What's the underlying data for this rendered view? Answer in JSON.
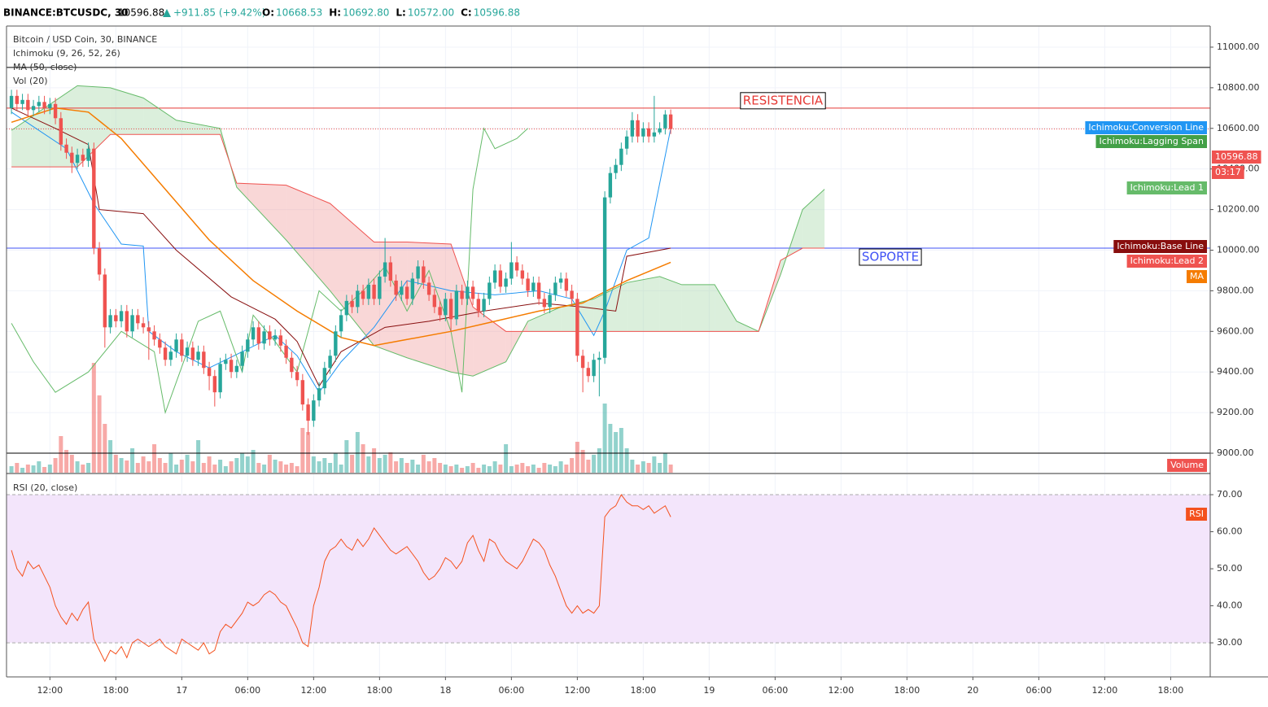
{
  "header": {
    "symbol": "BINANCE:BTCUSDC, 30",
    "last": "10596.88",
    "change": "+911.85 (+9.42%)",
    "ohlc": [
      {
        "label": "O:",
        "value": "10668.53"
      },
      {
        "label": "H:",
        "value": "10692.80"
      },
      {
        "label": "L:",
        "value": "10572.00"
      },
      {
        "label": "C:",
        "value": "10596.88"
      }
    ]
  },
  "chart_data": {
    "type": "candlestick",
    "legend": [
      "Bitcoin / USD Coin, 30, BINANCE",
      "Ichimoku (9, 26, 52, 26)",
      "MA (50, close)",
      "Vol (20)"
    ],
    "last_price": {
      "value": 10596.88,
      "label": "10596.88"
    },
    "countdown": "03:17",
    "xlim": [
      -0.9,
      218.2
    ],
    "ylim": [
      8904,
      11104
    ],
    "xticks": [
      {
        "value": 7,
        "label": "12:00"
      },
      {
        "value": 19,
        "label": "18:00"
      },
      {
        "value": 31,
        "label": "17"
      },
      {
        "value": 43,
        "label": "06:00"
      },
      {
        "value": 55,
        "label": "12:00"
      },
      {
        "value": 67,
        "label": "18:00"
      },
      {
        "value": 79,
        "label": "18"
      },
      {
        "value": 91,
        "label": "06:00"
      },
      {
        "value": 103,
        "label": "12:00"
      },
      {
        "value": 115,
        "label": "18:00"
      },
      {
        "value": 127,
        "label": "19"
      },
      {
        "value": 139,
        "label": "06:00"
      },
      {
        "value": 151,
        "label": "12:00"
      },
      {
        "value": 163,
        "label": "18:00"
      },
      {
        "value": 175,
        "label": "20"
      },
      {
        "value": 187,
        "label": "06:00"
      },
      {
        "value": 199,
        "label": "12:00"
      },
      {
        "value": 211,
        "label": "18:00"
      }
    ],
    "yticks": [
      {
        "value": 9000,
        "label": "9000.00"
      },
      {
        "value": 9200,
        "label": "9200.00"
      },
      {
        "value": 9400,
        "label": "9400.00"
      },
      {
        "value": 9600,
        "label": "9600.00"
      },
      {
        "value": 9800,
        "label": "9800.00"
      },
      {
        "value": 10000,
        "label": "10000.00"
      },
      {
        "value": 10200,
        "label": "10200.00"
      },
      {
        "value": 10400,
        "label": "10400.00"
      },
      {
        "value": 10600,
        "label": "10600.00"
      },
      {
        "value": 10800,
        "label": "10800.00"
      },
      {
        "value": 11000,
        "label": "11000.00"
      }
    ],
    "grid": true,
    "up_color": "#26a69a",
    "down_color": "#ef5350",
    "open": [
      10700,
      10760,
      10720,
      10740,
      10690,
      10710,
      10730,
      10700,
      10720,
      10650,
      10520,
      10480,
      10430,
      10470,
      10440,
      10500,
      10010,
      9880,
      9620,
      9680,
      9650,
      9700,
      9600,
      9680,
      9640,
      9620,
      9600,
      9560,
      9520,
      9460,
      9500,
      9560,
      9480,
      9520,
      9460,
      9500,
      9420,
      9380,
      9300,
      9440,
      9460,
      9400,
      9430,
      9500,
      9560,
      9620,
      9540,
      9600,
      9560,
      9580,
      9530,
      9470,
      9400,
      9360,
      9240,
      9160,
      9260,
      9320,
      9420,
      9480,
      9600,
      9680,
      9750,
      9720,
      9800,
      9760,
      9830,
      9760,
      9870,
      9940,
      9850,
      9780,
      9820,
      9760,
      9860,
      9920,
      9840,
      9780,
      9720,
      9680,
      9760,
      9660,
      9800,
      9760,
      9820,
      9760,
      9700,
      9760,
      9840,
      9900,
      9820,
      9860,
      9940,
      9900,
      9860,
      9800,
      9840,
      9760,
      9720,
      9780,
      9840,
      9860,
      9800,
      9760,
      9480,
      9420,
      9380,
      9460,
      9470,
      10260,
      10380,
      10420,
      10500,
      10560,
      10640,
      10560,
      10600,
      10560,
      10580,
      10600,
      10668.53
    ],
    "high": [
      10790,
      10790,
      10770,
      10770,
      10740,
      10760,
      10760,
      10750,
      10750,
      10680,
      10550,
      10510,
      10500,
      10500,
      10530,
      10530,
      10040,
      9910,
      9710,
      9710,
      9730,
      9730,
      9710,
      9710,
      9670,
      9650,
      9630,
      9590,
      9550,
      9530,
      9590,
      9590,
      9550,
      9550,
      9530,
      9530,
      9450,
      9410,
      9470,
      9490,
      9490,
      9460,
      9530,
      9590,
      9650,
      9650,
      9630,
      9630,
      9610,
      9610,
      9560,
      9500,
      9430,
      9390,
      9270,
      9290,
      9350,
      9450,
      9510,
      9630,
      9710,
      9780,
      9780,
      9830,
      9830,
      9860,
      9860,
      9900,
      10060,
      9970,
      9880,
      9850,
      9850,
      9890,
      9950,
      9950,
      9870,
      9810,
      9750,
      9790,
      9790,
      9830,
      9830,
      9850,
      9850,
      9790,
      9790,
      9870,
      9930,
      9930,
      9890,
      10040,
      9970,
      9930,
      9890,
      9870,
      9870,
      9790,
      9810,
      9870,
      9890,
      9890,
      9830,
      9790,
      9510,
      9450,
      9490,
      9500,
      10290,
      10410,
      10450,
      10530,
      10590,
      10680,
      10670,
      10630,
      10630,
      10760,
      10630,
      10690,
      10692.8
    ],
    "low": [
      10670,
      10690,
      10690,
      10660,
      10660,
      10680,
      10670,
      10670,
      10620,
      10490,
      10450,
      10380,
      10400,
      10410,
      10410,
      9980,
      9850,
      9520,
      9590,
      9620,
      9620,
      9570,
      9570,
      9610,
      9590,
      9460,
      9530,
      9490,
      9430,
      9430,
      9470,
      9450,
      9450,
      9430,
      9430,
      9390,
      9310,
      9230,
      9270,
      9410,
      9370,
      9370,
      9400,
      9470,
      9530,
      9510,
      9510,
      9530,
      9530,
      9500,
      9440,
      9370,
      9330,
      9210,
      9090,
      9130,
      9230,
      9290,
      9390,
      9450,
      9570,
      9650,
      9690,
      9690,
      9730,
      9730,
      9730,
      9730,
      9840,
      9820,
      9750,
      9750,
      9730,
      9730,
      9830,
      9810,
      9750,
      9690,
      9650,
      9650,
      9600,
      9630,
      9730,
      9730,
      9730,
      9670,
      9670,
      9730,
      9810,
      9790,
      9790,
      9830,
      9870,
      9830,
      9770,
      9770,
      9730,
      9690,
      9690,
      9750,
      9810,
      9770,
      9730,
      9450,
      9300,
      9350,
      9350,
      9280,
      9440,
      10230,
      10350,
      10390,
      10470,
      10530,
      10530,
      10530,
      10530,
      10530,
      10570,
      10570,
      10572
    ],
    "close": [
      10760,
      10720,
      10740,
      10690,
      10710,
      10730,
      10700,
      10720,
      10650,
      10520,
      10480,
      10430,
      10470,
      10440,
      10500,
      10010,
      9880,
      9620,
      9680,
      9650,
      9700,
      9600,
      9680,
      9640,
      9620,
      9600,
      9560,
      9520,
      9460,
      9500,
      9560,
      9480,
      9520,
      9460,
      9500,
      9420,
      9380,
      9300,
      9440,
      9460,
      9400,
      9430,
      9500,
      9560,
      9620,
      9540,
      9600,
      9560,
      9580,
      9530,
      9470,
      9400,
      9360,
      9240,
      9160,
      9260,
      9320,
      9420,
      9480,
      9600,
      9680,
      9750,
      9720,
      9800,
      9760,
      9830,
      9760,
      9870,
      9940,
      9850,
      9780,
      9820,
      9760,
      9860,
      9920,
      9840,
      9780,
      9720,
      9680,
      9760,
      9660,
      9800,
      9760,
      9820,
      9760,
      9700,
      9760,
      9840,
      9900,
      9820,
      9860,
      9940,
      9900,
      9860,
      9800,
      9840,
      9760,
      9720,
      9780,
      9840,
      9860,
      9800,
      9760,
      9480,
      9420,
      9380,
      9460,
      9470,
      10260,
      10380,
      10420,
      10500,
      10560,
      10640,
      10560,
      10600,
      10560,
      10580,
      10600,
      10668.53,
      10596.88
    ],
    "volume": {
      "name": "Volume",
      "values": [
        8,
        12,
        6,
        10,
        9,
        14,
        7,
        10,
        18,
        45,
        28,
        22,
        14,
        10,
        12,
        135,
        95,
        60,
        40,
        22,
        18,
        15,
        30,
        12,
        20,
        14,
        35,
        18,
        12,
        24,
        10,
        16,
        22,
        14,
        40,
        12,
        20,
        10,
        16,
        8,
        14,
        18,
        24,
        20,
        28,
        12,
        10,
        22,
        16,
        14,
        10,
        12,
        8,
        55,
        50,
        20,
        14,
        18,
        12,
        24,
        10,
        40,
        22,
        50,
        35,
        20,
        30,
        18,
        22,
        25,
        14,
        18,
        12,
        16,
        10,
        22,
        14,
        18,
        12,
        10,
        8,
        10,
        6,
        8,
        12,
        6,
        10,
        8,
        14,
        10,
        35,
        8,
        10,
        12,
        8,
        10,
        6,
        12,
        10,
        8,
        14,
        10,
        18,
        38,
        28,
        16,
        22,
        30,
        85,
        60,
        50,
        55,
        30,
        16,
        10,
        14,
        12,
        20,
        12,
        24,
        10
      ]
    },
    "levels": [
      {
        "value": 10900,
        "color": "#000000"
      },
      {
        "value": 10700,
        "color": "#e53935",
        "label": "RESISTENCIA"
      },
      {
        "value": 10010,
        "color": "#3f51f5",
        "label": "SOPORTE"
      },
      {
        "value": 9000,
        "color": "#000000"
      }
    ],
    "cloud": {
      "up_color": "#a5d6a7",
      "down_color": "#ef9a9a"
    },
    "indicators": [
      {
        "name": "Ichimoku:Conversion Line",
        "color": "#2196f3",
        "x": [
          0,
          10,
          15,
          20,
          24,
          25,
          30,
          36,
          42,
          48,
          52,
          56,
          60,
          66,
          72,
          80,
          88,
          96,
          102,
          106,
          108,
          112,
          116,
          120
        ],
        "values": [
          10680,
          10500,
          10230,
          10030,
          10020,
          9600,
          9500,
          9420,
          9500,
          9580,
          9480,
          9300,
          9450,
          9620,
          9850,
          9800,
          9780,
          9800,
          9760,
          9580,
          9700,
          10000,
          10060,
          10600
        ]
      },
      {
        "name": "Ichimoku:Lagging Span",
        "color": "#66bb6a",
        "x": [
          0,
          4,
          8,
          14,
          20,
          26,
          28,
          30,
          34,
          38,
          42,
          44,
          48,
          52,
          56,
          60,
          64,
          68,
          72,
          76,
          80,
          82,
          84,
          86,
          88,
          92,
          94
        ],
        "values": [
          9640,
          9450,
          9300,
          9400,
          9600,
          9500,
          9200,
          9350,
          9650,
          9700,
          9400,
          9680,
          9550,
          9400,
          9800,
          9700,
          9800,
          9920,
          9700,
          9900,
          9600,
          9300,
          10300,
          10600,
          10500,
          10550,
          10600
        ]
      },
      {
        "name": "Ichimoku:Lead 1",
        "color": "#66bb6a",
        "lead": 1,
        "x": [
          0,
          12,
          18,
          24,
          30,
          38,
          41,
          50,
          58,
          66,
          72,
          80,
          84,
          90,
          94,
          100,
          106,
          112,
          118,
          122,
          128,
          132,
          136,
          140,
          144,
          148
        ],
        "values": [
          10590,
          10810,
          10800,
          10750,
          10640,
          10600,
          10310,
          10050,
          9800,
          9530,
          9470,
          9400,
          9380,
          9450,
          9650,
          9720,
          9760,
          9840,
          9870,
          9830,
          9830,
          9650,
          9600,
          9880,
          10200,
          10300
        ]
      },
      {
        "name": "Ichimoku:Base Line",
        "color": "#880e0e",
        "x": [
          0,
          8,
          14,
          16,
          24,
          30,
          40,
          48,
          52,
          56,
          60,
          68,
          76,
          86,
          96,
          104,
          110,
          112,
          120
        ],
        "values": [
          10700,
          10600,
          10520,
          10200,
          10180,
          10000,
          9770,
          9660,
          9550,
          9330,
          9500,
          9620,
          9650,
          9700,
          9740,
          9720,
          9700,
          9970,
          10010
        ]
      },
      {
        "name": "Ichimoku:Lead 2",
        "color": "#ef5350",
        "lead": 2,
        "x": [
          0,
          12,
          18,
          24,
          30,
          38,
          41,
          50,
          58,
          66,
          72,
          80,
          84,
          90,
          94,
          100,
          106,
          112,
          118,
          122,
          128,
          132,
          136,
          140,
          144,
          148
        ],
        "values": [
          10410,
          10410,
          10570,
          10570,
          10570,
          10570,
          10330,
          10320,
          10230,
          10040,
          10040,
          10030,
          9720,
          9600,
          9600,
          9600,
          9600,
          9600,
          9600,
          9600,
          9600,
          9600,
          9600,
          9950,
          10010,
          10010
        ]
      },
      {
        "name": "MA",
        "color": "#f57c00",
        "x": [
          0,
          8,
          14,
          20,
          28,
          36,
          44,
          52,
          60,
          66,
          72,
          80,
          88,
          96,
          104,
          112,
          120
        ],
        "values": [
          10630,
          10700,
          10680,
          10550,
          10300,
          10050,
          9850,
          9700,
          9570,
          9530,
          9560,
          9600,
          9650,
          9700,
          9740,
          9850,
          9940
        ]
      }
    ],
    "rsi": {
      "title": "RSI (20, close)",
      "name": "RSI",
      "color": "#f4511e",
      "ylim": [
        20.8,
        75.5
      ],
      "yticks": [
        {
          "value": 30,
          "label": "30.00"
        },
        {
          "value": 40,
          "label": "40.00"
        },
        {
          "value": 50,
          "label": "50.00"
        },
        {
          "value": 60,
          "label": "60.00"
        },
        {
          "value": 70,
          "label": "70.00"
        }
      ],
      "band": [
        30,
        70
      ],
      "values": [
        55,
        50,
        48,
        52,
        50,
        51,
        48,
        45,
        40,
        37,
        35,
        38,
        36,
        39,
        41,
        31,
        28,
        25,
        28,
        27,
        29,
        26,
        30,
        31,
        30,
        29,
        30,
        31,
        29,
        28,
        27,
        31,
        30,
        29,
        28,
        30,
        27,
        28,
        33,
        35,
        34,
        36,
        38,
        41,
        40,
        41,
        43,
        44,
        43,
        41,
        40,
        37,
        34,
        30,
        29,
        40,
        45,
        52,
        55,
        56,
        58,
        56,
        55,
        58,
        56,
        58,
        61,
        59,
        57,
        55,
        54,
        55,
        56,
        54,
        52,
        49,
        47,
        48,
        50,
        53,
        52,
        50,
        52,
        57,
        59,
        55,
        52,
        58,
        57,
        54,
        52,
        51,
        50,
        52,
        55,
        58,
        57,
        55,
        51,
        48,
        44,
        40,
        38,
        40,
        38,
        39,
        38,
        40,
        64,
        66,
        67,
        70,
        68,
        67,
        67,
        66,
        67,
        65,
        66,
        67,
        64
      ]
    }
  }
}
